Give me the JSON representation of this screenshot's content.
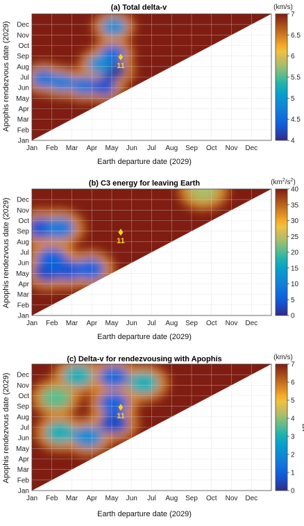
{
  "chart_data": [
    {
      "type": "heatmap",
      "title": "(a) Total delta-v",
      "xlabel": "Earth departure date (2029)",
      "ylabel": "Apophis rendezvous date (2029)",
      "x_ticks": [
        "Jan",
        "Feb",
        "Mar",
        "Apr",
        "May",
        "Jun",
        "Jul",
        "Aug",
        "Sep",
        "Oct",
        "Nov",
        "Dec"
      ],
      "y_ticks": [
        "Jan",
        "Feb",
        "Mar",
        "Apr",
        "May",
        "Jun",
        "Jul",
        "Aug",
        "Sep",
        "Oct",
        "Nov",
        "Dec"
      ],
      "colorbar": {
        "unit": "(km/s)",
        "min": 4,
        "max": 7,
        "ticks": [
          "4",
          "4.5",
          "5",
          "5.5",
          "6",
          "6.5",
          "7"
        ]
      },
      "grid": true,
      "marker": {
        "label": "11",
        "x_month": 4.45,
        "y_month": 7.9
      },
      "blobs": [
        {
          "x": 0.6,
          "y": 5.85,
          "v": 4.6
        },
        {
          "x": 1.5,
          "y": 5.5,
          "v": 4.7
        },
        {
          "x": 2.6,
          "y": 5.2,
          "v": 4.6
        },
        {
          "x": 3.6,
          "y": 5.1,
          "v": 4.3
        },
        {
          "x": 4.1,
          "y": 6.6,
          "v": 4.1
        },
        {
          "x": 4.05,
          "y": 8.2,
          "v": 4.5
        },
        {
          "x": 4.1,
          "y": 10.8,
          "v": 4.9
        },
        {
          "x": 3.4,
          "y": 7.2,
          "v": 4.9
        }
      ],
      "blob_radius": 0.85
    },
    {
      "type": "heatmap",
      "title": "(b) C3 energy for leaving Earth",
      "xlabel": "Earth departure date (2029)",
      "ylabel": "Apophis rendezvous date (2029)",
      "x_ticks": [
        "Jan",
        "Feb",
        "Mar",
        "Apr",
        "May",
        "Jun",
        "Jul",
        "Aug",
        "Sep",
        "Oct",
        "Nov",
        "Dec"
      ],
      "y_ticks": [
        "Jan",
        "Feb",
        "Mar",
        "Apr",
        "May",
        "Jun",
        "Jul",
        "Aug",
        "Sep",
        "Oct",
        "Nov",
        "Dec"
      ],
      "colorbar": {
        "unit": "(km2/s2)",
        "min": 0,
        "max": 40,
        "ticks": [
          "0",
          "5",
          "10",
          "15",
          "20",
          "25",
          "30",
          "35",
          "40"
        ]
      },
      "grid": true,
      "marker": {
        "label": "11",
        "x_month": 4.45,
        "y_month": 7.9
      },
      "blobs": [
        {
          "x": 0.8,
          "y": 4.2,
          "v": 3
        },
        {
          "x": 1.8,
          "y": 4.3,
          "v": 4
        },
        {
          "x": 2.9,
          "y": 4.4,
          "v": 6
        },
        {
          "x": 1.0,
          "y": 5.4,
          "v": 6
        },
        {
          "x": 0.5,
          "y": 8.3,
          "v": 4
        },
        {
          "x": 1.4,
          "y": 8.3,
          "v": 9
        },
        {
          "x": 8.6,
          "y": 11.8,
          "v": 24
        }
      ],
      "blob_radius": 1.0
    },
    {
      "type": "heatmap",
      "title": "(c) Delta-v for rendezvousing with Apophis",
      "xlabel": "Earth departure date (2029)",
      "ylabel": "Apophis rendezvous date (2029)",
      "x_ticks": [
        "Jan",
        "Feb",
        "Mar",
        "Apr",
        "May",
        "Jun",
        "Jul",
        "Aug",
        "Sep",
        "Oct",
        "Nov",
        "Dec"
      ],
      "y_ticks": [
        "Jan",
        "Feb",
        "Mar",
        "Apr",
        "May",
        "Jun",
        "Jul",
        "Aug",
        "Sep",
        "Oct",
        "Nov",
        "Dec"
      ],
      "colorbar": {
        "unit": "(km/s)",
        "side_label": "Δv",
        "min": 0,
        "max": 7,
        "ticks": [
          "0",
          "1",
          "2",
          "3",
          "4",
          "5",
          "6",
          "7"
        ]
      },
      "grid": true,
      "marker": {
        "label": "11",
        "x_month": 4.45,
        "y_month": 7.9
      },
      "blobs": [
        {
          "x": 4.1,
          "y": 6.4,
          "v": 0.6
        },
        {
          "x": 4.1,
          "y": 8.3,
          "v": 1.0
        },
        {
          "x": 4.1,
          "y": 10.8,
          "v": 1.2
        },
        {
          "x": 2.8,
          "y": 5.1,
          "v": 2.0
        },
        {
          "x": 1.4,
          "y": 5.5,
          "v": 3.0
        },
        {
          "x": 1.2,
          "y": 8.8,
          "v": 3.6
        },
        {
          "x": 2.3,
          "y": 10.9,
          "v": 3.0
        },
        {
          "x": 5.6,
          "y": 10.2,
          "v": 3.0
        }
      ],
      "blob_radius": 1.0
    }
  ],
  "colors": {
    "saturated": "#7f1d12",
    "grid": "#d8d8d8",
    "marker": "#f2d23c"
  }
}
